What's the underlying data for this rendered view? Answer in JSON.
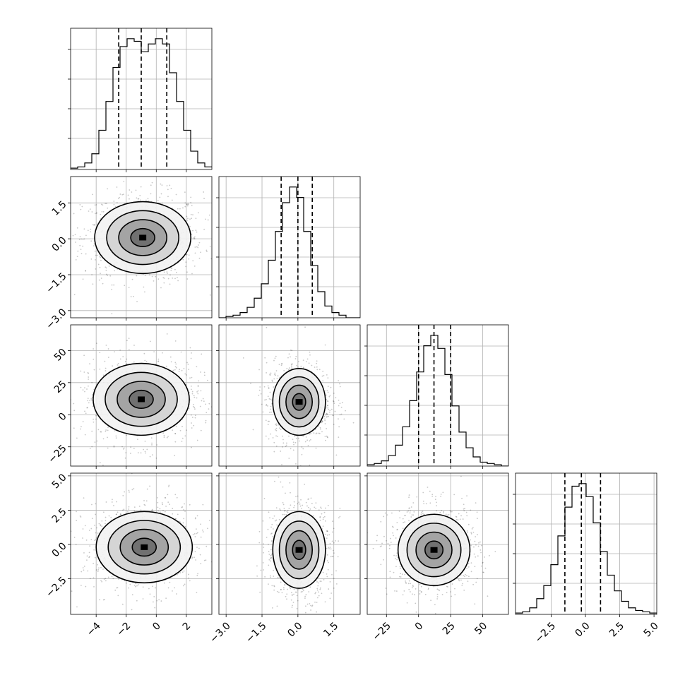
{
  "chart_data": {
    "type": "corner",
    "title": "",
    "n_params": 4,
    "parameters": [
      {
        "label": "",
        "range": [
          -5.7,
          3.7
        ],
        "ticks": [
          -4,
          -2,
          0,
          2
        ],
        "tick_labels": [
          "−4",
          "−2",
          "0",
          "2"
        ],
        "quantiles": [
          -2.5,
          -1.0,
          0.7
        ],
        "hist_bins": [
          0.01,
          0.02,
          0.05,
          0.12,
          0.3,
          0.52,
          0.78,
          0.94,
          1.0,
          0.98,
          0.9,
          0.96,
          1.0,
          0.96,
          0.74,
          0.52,
          0.3,
          0.14,
          0.05,
          0.02
        ]
      },
      {
        "label": "",
        "range": [
          -3.3,
          2.6
        ],
        "ticks": [
          -3.0,
          -1.5,
          0.0,
          1.5
        ],
        "tick_labels": [
          "−3.0",
          "−1.5",
          "0.0",
          "1.5"
        ],
        "quantiles": [
          -0.7,
          0.0,
          0.6
        ],
        "hist_bins": [
          0.0,
          0.01,
          0.02,
          0.04,
          0.08,
          0.15,
          0.26,
          0.44,
          0.66,
          0.88,
          1.0,
          0.92,
          0.66,
          0.4,
          0.2,
          0.09,
          0.04,
          0.02,
          0.0,
          0.0
        ]
      },
      {
        "label": "",
        "range": [
          -40,
          70
        ],
        "ticks": [
          -25,
          0,
          25,
          50
        ],
        "tick_labels": [
          "−25",
          "0",
          "25",
          "50"
        ],
        "quantiles": [
          0,
          12,
          25
        ],
        "hist_bins": [
          0.01,
          0.02,
          0.04,
          0.08,
          0.16,
          0.3,
          0.5,
          0.72,
          0.92,
          1.0,
          0.9,
          0.7,
          0.46,
          0.26,
          0.14,
          0.07,
          0.03,
          0.02,
          0.01,
          0.0
        ]
      },
      {
        "label": "",
        "range": [
          -5.1,
          5.2
        ],
        "ticks": [
          -2.5,
          0.0,
          2.5,
          5.0
        ],
        "tick_labels": [
          "−2.5",
          "0.0",
          "2.5",
          "5.0"
        ],
        "quantiles": [
          -1.5,
          -0.3,
          1.1
        ],
        "hist_bins": [
          0.01,
          0.02,
          0.05,
          0.12,
          0.22,
          0.38,
          0.6,
          0.82,
          0.98,
          1.0,
          0.9,
          0.7,
          0.48,
          0.3,
          0.18,
          0.1,
          0.05,
          0.03,
          0.02,
          0.01
        ]
      }
    ],
    "y_tick_labels_rows": [
      [
        "1.5",
        "0.0",
        "−1.5",
        "−3.0"
      ],
      [
        "50",
        "25",
        "0",
        "−25"
      ],
      [
        "5.0",
        "2.5",
        "0.0",
        "−2.5"
      ]
    ],
    "pair_means": {
      "0_1": [
        -0.9,
        0.05
      ],
      "0_2": [
        -1.0,
        12
      ],
      "1_2": [
        0.05,
        10
      ],
      "0_3": [
        -0.8,
        -0.2
      ],
      "1_3": [
        0.05,
        -0.4
      ],
      "2_3": [
        12,
        -0.4
      ]
    },
    "pair_spreads": {
      "0_1": [
        1.6,
        0.75
      ],
      "0_2": [
        1.6,
        14
      ],
      "1_2": [
        0.55,
        13
      ],
      "0_3": [
        1.6,
        1.3
      ],
      "1_3": [
        0.55,
        1.4
      ],
      "2_3": [
        14,
        1.3
      ]
    },
    "grid": true,
    "scatter_color": "#000000",
    "hist_color": "#000000",
    "contour_color": "#000000",
    "density_color": "#404040"
  }
}
